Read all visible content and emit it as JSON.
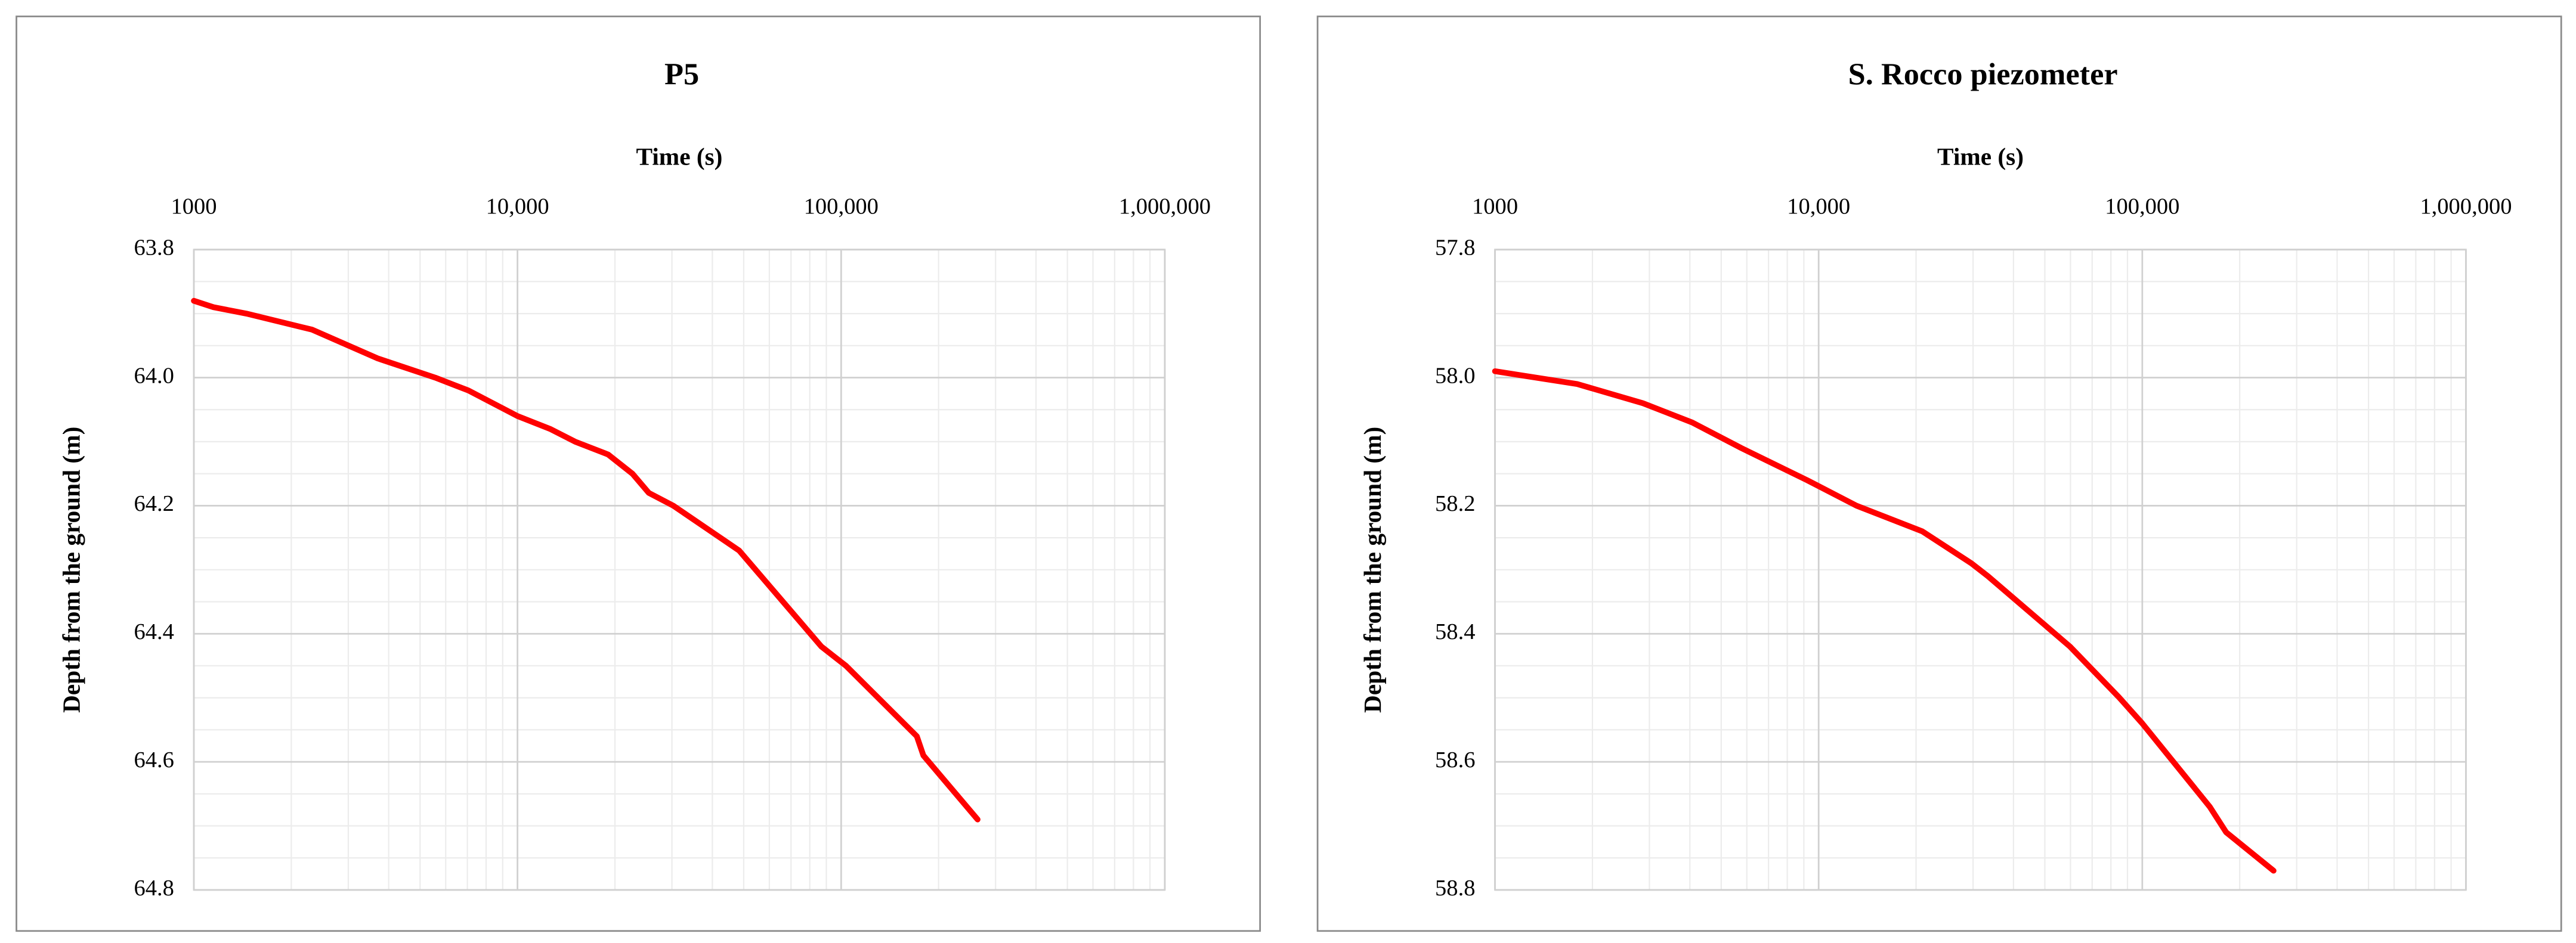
{
  "chart_data": [
    {
      "type": "line",
      "title": "P5",
      "x_label": "Time (s)",
      "y_label": "Depth from the ground (m)",
      "x": [
        1000,
        1150,
        1453,
        2317,
        3700,
        5570,
        7050,
        10000,
        12600,
        15070,
        19050,
        22650,
        25450,
        30300,
        48400,
        86900,
        103500,
        171300,
        179500,
        264000
      ],
      "values": [
        63.88,
        63.89,
        63.9,
        63.925,
        63.97,
        64.0,
        64.02,
        64.06,
        64.08,
        64.1,
        64.12,
        64.15,
        64.18,
        64.2,
        64.27,
        64.42,
        64.45,
        64.56,
        64.59,
        64.69
      ],
      "color": "#ff0000",
      "xlim": [
        1000,
        1000000
      ],
      "xticks": [
        1000,
        {
          "value": 10000,
          "label": "10,000"
        },
        {
          "value": 100000,
          "label": "100,000"
        },
        {
          "value": 1000000,
          "label": "1,000,000"
        }
      ],
      "ylim": [
        63.8,
        64.8
      ],
      "yticks": [
        63.8,
        {
          "value": 64,
          "label": "64.0"
        },
        64.2,
        64.4,
        64.6,
        64.8
      ],
      "x_log": true,
      "y_inverted": true,
      "x_axis_position": "top",
      "grid": true,
      "minor_grid": true
    },
    {
      "type": "line",
      "title": "S. Rocco piezometer",
      "x_label": "Time (s)",
      "y_label": "Depth from the ground (m)",
      "x": [
        1000,
        1794,
        2866,
        4067,
        5770,
        9200,
        13090,
        20900,
        29650,
        33340,
        59800,
        85000,
        100000,
        161500,
        181600,
        254500
      ],
      "values": [
        57.99,
        58.01,
        58.04,
        58.07,
        58.11,
        58.16,
        58.2,
        58.24,
        58.29,
        58.31,
        58.42,
        58.5,
        58.54,
        58.67,
        58.71,
        58.77
      ],
      "color": "#ff0000",
      "xlim": [
        1000,
        1000000
      ],
      "xticks": [
        1000,
        {
          "value": 10000,
          "label": "10,000"
        },
        {
          "value": 100000,
          "label": "100,000"
        },
        {
          "value": 1000000,
          "label": "1,000,000"
        }
      ],
      "ylim": [
        57.8,
        58.8
      ],
      "yticks": [
        57.8,
        {
          "value": 58,
          "label": "58.0"
        },
        58.2,
        58.4,
        58.6,
        58.8
      ],
      "x_log": true,
      "y_inverted": true,
      "x_axis_position": "top",
      "grid": true,
      "minor_grid": true
    }
  ]
}
